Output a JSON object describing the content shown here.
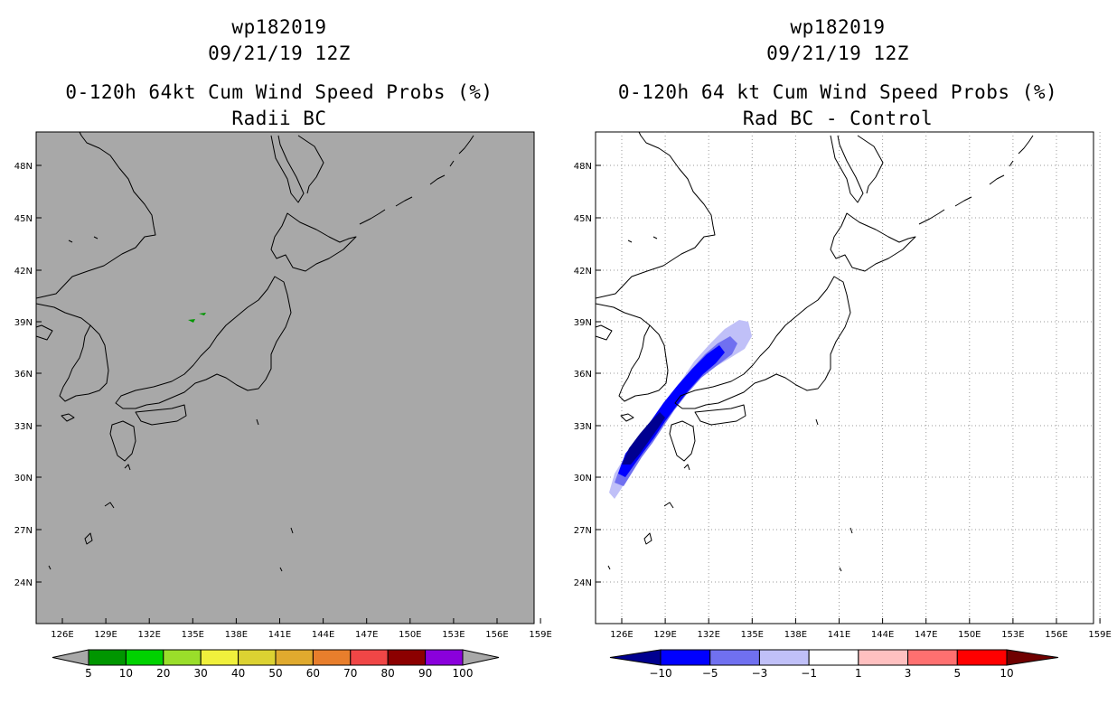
{
  "panels": [
    {
      "id": "left",
      "title1": "wp182019",
      "title2": "09/21/19 12Z",
      "title3": "0-120h 64kt Cum Wind Speed Probs (%)",
      "title4": "Radii BC",
      "background": "#a8a8a8",
      "lat_labels": [
        "48N",
        "45N",
        "42N",
        "39N",
        "36N",
        "33N",
        "30N",
        "27N",
        "24N"
      ],
      "lon_labels": [
        "126E",
        "129E",
        "132E",
        "135E",
        "138E",
        "141E",
        "144E",
        "147E",
        "150E",
        "153E",
        "156E",
        "159E"
      ],
      "colorbar": {
        "colors": [
          "#009600",
          "#00d200",
          "#9ade2a",
          "#f0f03c",
          "#dcd232",
          "#e0aa2e",
          "#e87e2c",
          "#f04646",
          "#8c0000",
          "#8a00dc"
        ],
        "end_color": "#a8a8a8",
        "labels": [
          "5",
          "10",
          "20",
          "30",
          "40",
          "50",
          "60",
          "70",
          "80",
          "90",
          "100"
        ]
      }
    },
    {
      "id": "right",
      "title1": "wp182019",
      "title2": "09/21/19 12Z",
      "title3": "0-120h 64 kt Cum Wind Speed Probs (%)",
      "title4": "Rad BC - Control",
      "background": "#ffffff",
      "lat_labels": [
        "48N",
        "45N",
        "42N",
        "39N",
        "36N",
        "33N",
        "30N",
        "27N",
        "24N"
      ],
      "lon_labels": [
        "126E",
        "129E",
        "132E",
        "135E",
        "138E",
        "141E",
        "144E",
        "147E",
        "150E",
        "153E",
        "156E",
        "159E"
      ],
      "colorbar": {
        "colors": [
          "#0000ff",
          "#7070f0",
          "#c0c0f8",
          "#ffffff",
          "#ffc0c0",
          "#ff7070",
          "#ff0000"
        ],
        "low_end_color": "#000090",
        "high_end_color": "#700000",
        "labels": [
          "-10",
          "-5",
          "-3",
          "-1",
          "1",
          "3",
          "5",
          "10"
        ]
      }
    }
  ]
}
